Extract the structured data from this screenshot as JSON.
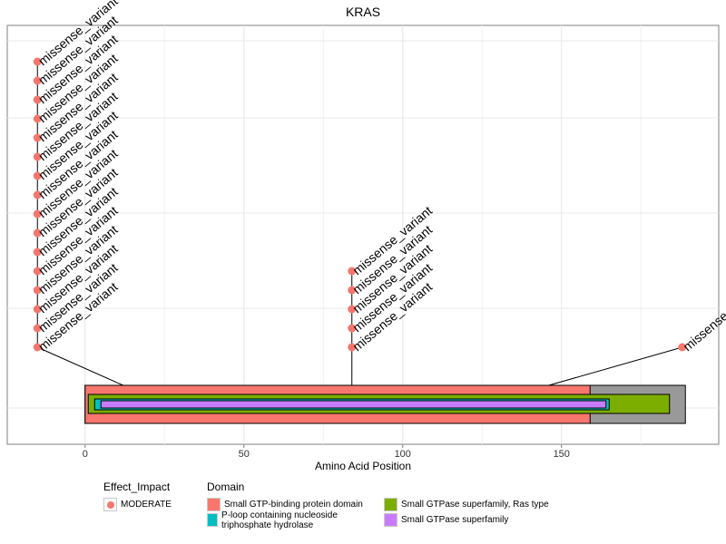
{
  "chart_data": {
    "type": "scatter",
    "title": "KRAS",
    "xlabel": "Amino Acid Position",
    "ylabel": "",
    "xlim": [
      -24.5,
      199.5
    ],
    "x_ticks": [
      0,
      50,
      100,
      150
    ],
    "protein_length": 189,
    "variant_label": "missense_variant",
    "variant_color": "#f8766d",
    "variants": [
      {
        "plot_x": -15,
        "position": 12,
        "count": 16
      },
      {
        "plot_x": 84,
        "position": 84,
        "count": 5
      },
      {
        "plot_x": 188,
        "position": 146,
        "count": 1
      }
    ],
    "domains": [
      {
        "name": "Small GTP-binding protein domain",
        "start": 0,
        "end": 159,
        "color": "#f8766d"
      },
      {
        "name": "Small GTPase superfamily, Ras type",
        "start": 1,
        "end": 184,
        "color": "#7cae00"
      },
      {
        "name": "P-loop containing nucleoside triphosphate hydrolase",
        "start": 3,
        "end": 165,
        "color": "#00bfc4"
      },
      {
        "name": "Small GTPase superfamily",
        "start": 5,
        "end": 164,
        "color": "#c77cff"
      }
    ],
    "grid": true,
    "legend_position": "bottom"
  },
  "legend": {
    "effect_title": "Effect_Impact",
    "effect_items": [
      {
        "label": "MODERATE",
        "color": "#f8766d"
      }
    ],
    "domain_title": "Domain"
  }
}
